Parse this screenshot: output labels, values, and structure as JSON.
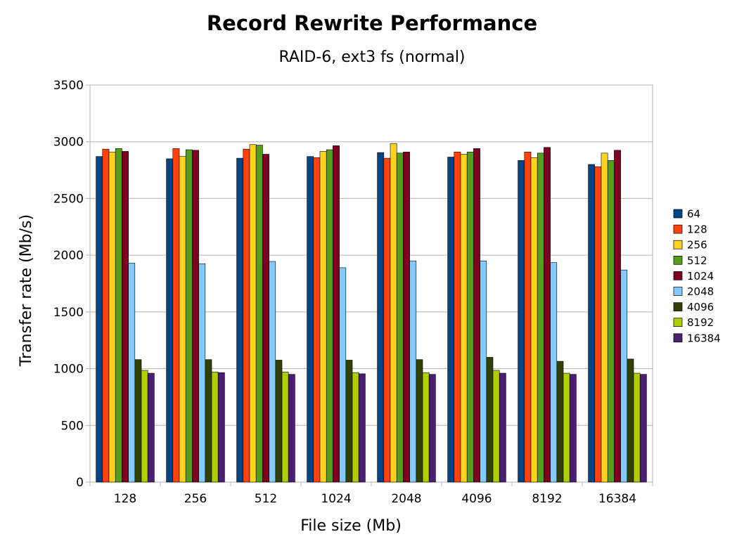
{
  "chart_data": {
    "type": "bar",
    "title": "Record Rewrite Performance",
    "subtitle": "RAID-6, ext3 fs (normal)",
    "xlabel": "File size (Mb)",
    "ylabel": "Transfer rate (Mb/s)",
    "ylim": [
      0,
      3500
    ],
    "yticks": [
      "0",
      "500",
      "1000",
      "1500",
      "2000",
      "2500",
      "3000",
      "3500"
    ],
    "grid": true,
    "legend_position": "right",
    "categories": [
      "128",
      "256",
      "512",
      "1024",
      "2048",
      "4096",
      "8192",
      "16384"
    ],
    "series": [
      {
        "name": "64",
        "color": "#004586",
        "values": [
          2870,
          2850,
          2855,
          2870,
          2905,
          2865,
          2835,
          2800
        ]
      },
      {
        "name": "128",
        "color": "#ff420e",
        "values": [
          2935,
          2940,
          2935,
          2860,
          2855,
          2910,
          2910,
          2780
        ]
      },
      {
        "name": "256",
        "color": "#ffd320",
        "values": [
          2910,
          2870,
          2975,
          2915,
          2985,
          2890,
          2860,
          2900
        ]
      },
      {
        "name": "512",
        "color": "#579d1c",
        "values": [
          2940,
          2930,
          2970,
          2930,
          2900,
          2910,
          2900,
          2835
        ]
      },
      {
        "name": "1024",
        "color": "#7e0021",
        "values": [
          2915,
          2925,
          2890,
          2965,
          2910,
          2940,
          2950,
          2925
        ]
      },
      {
        "name": "2048",
        "color": "#83caff",
        "values": [
          1930,
          1925,
          1945,
          1890,
          1950,
          1950,
          1935,
          1870
        ]
      },
      {
        "name": "4096",
        "color": "#314004",
        "values": [
          1080,
          1080,
          1075,
          1075,
          1080,
          1100,
          1065,
          1085
        ]
      },
      {
        "name": "8192",
        "color": "#aecf00",
        "values": [
          985,
          970,
          970,
          965,
          965,
          985,
          960,
          960
        ]
      },
      {
        "name": "16384",
        "color": "#4b1f6f",
        "values": [
          960,
          965,
          950,
          955,
          950,
          960,
          950,
          950
        ]
      }
    ]
  }
}
